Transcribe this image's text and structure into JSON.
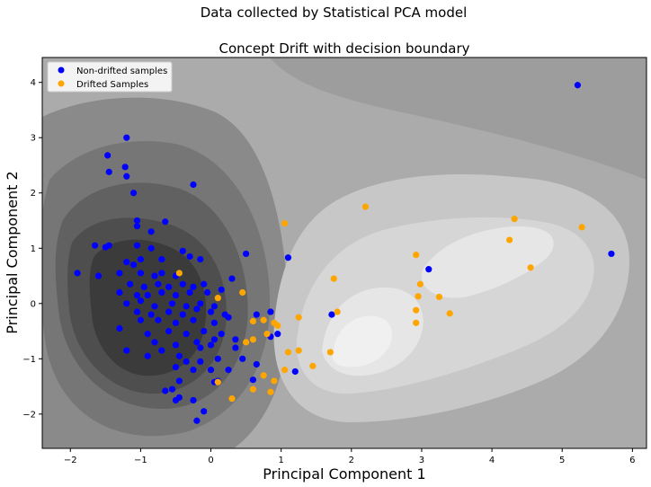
{
  "figure": {
    "suptitle": "Data collected by Statistical PCA model"
  },
  "chart_data": {
    "type": "scatter",
    "title": "Concept Drift with decision boundary",
    "xlabel": "Principal Component 1",
    "ylabel": "Principal Component 2",
    "xlim": [
      -2.4,
      6.2
    ],
    "ylim": [
      -2.62,
      4.45
    ],
    "xticks": [
      -2,
      -1,
      0,
      1,
      2,
      3,
      4,
      5,
      6
    ],
    "yticks": [
      -2,
      -1,
      0,
      1,
      2,
      3,
      4
    ],
    "legend": {
      "location": "upper-left"
    },
    "grid": false,
    "background": "filled gray contour decision boundary",
    "series": [
      {
        "name": "Non-drifted samples",
        "color": "#0000ff",
        "points": [
          [
            -1.2,
            3.0
          ],
          [
            -1.47,
            2.68
          ],
          [
            -1.45,
            2.38
          ],
          [
            -1.22,
            2.47
          ],
          [
            -1.2,
            2.3
          ],
          [
            -1.1,
            2.0
          ],
          [
            -0.25,
            2.15
          ],
          [
            -1.05,
            1.5
          ],
          [
            -1.05,
            1.4
          ],
          [
            -0.65,
            1.48
          ],
          [
            -0.85,
            1.3
          ],
          [
            -1.65,
            1.05
          ],
          [
            -1.5,
            1.02
          ],
          [
            -1.45,
            1.05
          ],
          [
            -1.05,
            1.05
          ],
          [
            -0.85,
            1.0
          ],
          [
            -0.4,
            0.95
          ],
          [
            -0.3,
            0.85
          ],
          [
            -1.2,
            0.75
          ],
          [
            -1.1,
            0.7
          ],
          [
            -1.0,
            0.8
          ],
          [
            -0.7,
            0.8
          ],
          [
            -0.15,
            0.8
          ],
          [
            -1.9,
            0.55
          ],
          [
            -1.6,
            0.5
          ],
          [
            -1.3,
            0.55
          ],
          [
            -1.0,
            0.55
          ],
          [
            -0.8,
            0.5
          ],
          [
            -0.7,
            0.55
          ],
          [
            -0.5,
            0.5
          ],
          [
            -1.15,
            0.35
          ],
          [
            -0.95,
            0.3
          ],
          [
            -0.75,
            0.35
          ],
          [
            -0.6,
            0.3
          ],
          [
            -0.4,
            0.35
          ],
          [
            -0.25,
            0.3
          ],
          [
            -0.1,
            0.35
          ],
          [
            -1.3,
            0.2
          ],
          [
            -1.05,
            0.15
          ],
          [
            -0.9,
            0.15
          ],
          [
            -0.7,
            0.2
          ],
          [
            -0.5,
            0.15
          ],
          [
            -0.3,
            0.2
          ],
          [
            -0.05,
            0.2
          ],
          [
            0.15,
            0.25
          ],
          [
            -1.2,
            0.0
          ],
          [
            -1.0,
            0.05
          ],
          [
            -0.8,
            -0.05
          ],
          [
            -0.55,
            0.0
          ],
          [
            -0.35,
            -0.05
          ],
          [
            -0.15,
            0.0
          ],
          [
            0.05,
            -0.05
          ],
          [
            -1.05,
            -0.15
          ],
          [
            -0.85,
            -0.2
          ],
          [
            -0.6,
            -0.15
          ],
          [
            -0.4,
            -0.2
          ],
          [
            -0.2,
            -0.1
          ],
          [
            0.0,
            -0.15
          ],
          [
            0.2,
            -0.2
          ],
          [
            -1.0,
            -0.3
          ],
          [
            -0.75,
            -0.3
          ],
          [
            -0.5,
            -0.35
          ],
          [
            -0.25,
            -0.3
          ],
          [
            0.05,
            -0.35
          ],
          [
            0.25,
            -0.25
          ],
          [
            -1.3,
            -0.45
          ],
          [
            -0.9,
            -0.55
          ],
          [
            -0.6,
            -0.5
          ],
          [
            -0.35,
            -0.55
          ],
          [
            -0.1,
            -0.5
          ],
          [
            0.15,
            -0.55
          ],
          [
            -0.8,
            -0.7
          ],
          [
            -0.5,
            -0.75
          ],
          [
            -0.2,
            -0.7
          ],
          [
            0.05,
            -0.65
          ],
          [
            0.35,
            -0.65
          ],
          [
            -1.2,
            -0.85
          ],
          [
            -0.9,
            -0.95
          ],
          [
            -0.7,
            -0.85
          ],
          [
            -0.45,
            -0.95
          ],
          [
            -0.15,
            -0.8
          ],
          [
            0.0,
            -0.75
          ],
          [
            -0.35,
            -1.05
          ],
          [
            -0.15,
            -1.05
          ],
          [
            0.1,
            -1.0
          ],
          [
            -0.5,
            -1.15
          ],
          [
            -0.25,
            -1.2
          ],
          [
            0.0,
            -1.2
          ],
          [
            0.25,
            -1.2
          ],
          [
            -0.45,
            -1.4
          ],
          [
            0.05,
            -1.42
          ],
          [
            0.1,
            -1.4
          ],
          [
            -0.65,
            -1.58
          ],
          [
            -0.55,
            -1.55
          ],
          [
            -0.45,
            -1.7
          ],
          [
            -0.5,
            -1.75
          ],
          [
            -0.25,
            -1.75
          ],
          [
            -0.1,
            -1.95
          ],
          [
            -0.2,
            -2.12
          ],
          [
            0.35,
            -0.8
          ],
          [
            0.45,
            -1.0
          ],
          [
            0.3,
            0.45
          ],
          [
            0.5,
            0.9
          ],
          [
            0.65,
            -0.2
          ],
          [
            0.85,
            -0.15
          ],
          [
            0.95,
            -0.55
          ],
          [
            0.85,
            -0.6
          ],
          [
            0.65,
            -1.1
          ],
          [
            0.6,
            -1.38
          ],
          [
            1.2,
            -1.23
          ],
          [
            1.1,
            0.83
          ],
          [
            1.72,
            -0.2
          ],
          [
            3.1,
            0.62
          ],
          [
            5.22,
            3.95
          ],
          [
            5.7,
            0.9
          ]
        ]
      },
      {
        "name": "Drifted Samples",
        "color": "#ffa500",
        "points": [
          [
            -0.45,
            0.55
          ],
          [
            0.45,
            0.2
          ],
          [
            0.1,
            0.1
          ],
          [
            0.6,
            -0.32
          ],
          [
            0.75,
            -0.3
          ],
          [
            0.9,
            -0.35
          ],
          [
            0.95,
            -0.4
          ],
          [
            0.8,
            -0.55
          ],
          [
            0.6,
            -0.65
          ],
          [
            0.5,
            -0.7
          ],
          [
            0.1,
            -1.42
          ],
          [
            0.3,
            -1.72
          ],
          [
            0.6,
            -1.55
          ],
          [
            0.85,
            -1.6
          ],
          [
            0.75,
            -1.3
          ],
          [
            0.9,
            -1.4
          ],
          [
            1.05,
            -1.2
          ],
          [
            1.1,
            -0.88
          ],
          [
            1.25,
            -0.85
          ],
          [
            1.25,
            -0.25
          ],
          [
            1.45,
            -1.13
          ],
          [
            1.7,
            -0.88
          ],
          [
            1.75,
            0.45
          ],
          [
            1.8,
            -0.15
          ],
          [
            1.05,
            1.45
          ],
          [
            2.2,
            1.75
          ],
          [
            2.92,
            0.88
          ],
          [
            2.98,
            0.35
          ],
          [
            2.95,
            0.13
          ],
          [
            2.92,
            -0.12
          ],
          [
            2.92,
            -0.35
          ],
          [
            3.25,
            0.12
          ],
          [
            3.4,
            -0.18
          ],
          [
            4.25,
            1.15
          ],
          [
            4.32,
            1.53
          ],
          [
            4.55,
            0.65
          ],
          [
            5.28,
            1.38
          ]
        ]
      }
    ]
  }
}
